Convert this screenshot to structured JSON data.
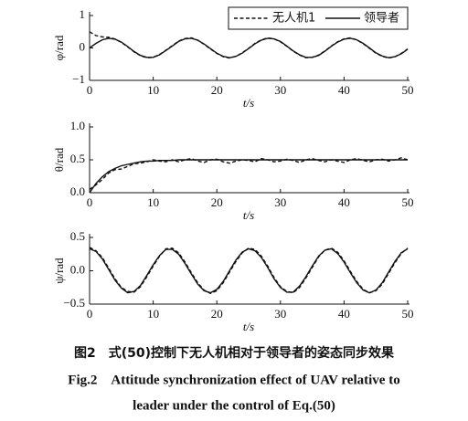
{
  "chart_data": [
    {
      "type": "line",
      "ylabel": "φ/rad",
      "xlabel": "t/s",
      "legend": "upper right",
      "x": [
        0,
        1,
        2,
        3,
        4,
        5,
        6,
        7,
        8,
        9,
        10,
        11,
        12,
        13,
        14,
        15,
        16,
        17,
        18,
        19,
        20,
        21,
        22,
        23,
        24,
        25,
        26,
        27,
        28,
        29,
        30,
        31,
        32,
        33,
        34,
        35,
        36,
        37,
        38,
        39,
        40,
        41,
        42,
        43,
        44,
        45,
        46,
        47,
        48,
        49,
        50
      ],
      "xlim": [
        0,
        50
      ],
      "xticks": [
        0,
        10,
        20,
        30,
        40,
        50
      ],
      "ylim": [
        -1,
        1
      ],
      "yticks": [
        {
          "value": -1,
          "label": "−1"
        },
        0,
        1
      ],
      "series": [
        {
          "name": "无人机1",
          "color": "#111111",
          "dash": true,
          "values": [
            0.5,
            0.38,
            0.34,
            0.33,
            0.28,
            0.17,
            0.03,
            -0.12,
            -0.24,
            -0.3,
            -0.29,
            -0.2,
            -0.07,
            0.07,
            0.21,
            0.29,
            0.31,
            0.24,
            0.11,
            -0.03,
            -0.17,
            -0.27,
            -0.31,
            -0.26,
            -0.15,
            -0.01,
            0.14,
            0.25,
            0.31,
            0.28,
            0.19,
            0.05,
            -0.1,
            -0.22,
            -0.3,
            -0.29,
            -0.22,
            -0.09,
            0.06,
            0.19,
            0.28,
            0.31,
            0.25,
            0.13,
            -0.01,
            -0.16,
            -0.26,
            -0.31,
            -0.27,
            -0.17,
            -0.03
          ]
        },
        {
          "name": "领导者",
          "color": "#111111",
          "dash": false,
          "values": [
            0,
            0.14,
            0.25,
            0.3,
            0.27,
            0.18,
            0.04,
            -0.11,
            -0.23,
            -0.29,
            -0.29,
            -0.21,
            -0.08,
            0.06,
            0.2,
            0.28,
            0.3,
            0.24,
            0.12,
            -0.02,
            -0.16,
            -0.26,
            -0.3,
            -0.26,
            -0.16,
            -0.02,
            0.13,
            0.24,
            0.3,
            0.28,
            0.2,
            0.06,
            -0.09,
            -0.21,
            -0.29,
            -0.29,
            -0.23,
            -0.1,
            0.05,
            0.18,
            0.27,
            0.3,
            0.25,
            0.14,
            0,
            -0.15,
            -0.25,
            -0.3,
            -0.27,
            -0.18,
            -0.04
          ]
        }
      ]
    },
    {
      "type": "line",
      "ylabel": "θ/rad",
      "xlabel": "t/s",
      "x": [
        0,
        1,
        2,
        3,
        4,
        5,
        6,
        7,
        8,
        9,
        10,
        11,
        12,
        13,
        14,
        15,
        16,
        17,
        18,
        19,
        20,
        21,
        22,
        23,
        24,
        25,
        26,
        27,
        28,
        29,
        30,
        31,
        32,
        33,
        34,
        35,
        36,
        37,
        38,
        39,
        40,
        41,
        42,
        43,
        44,
        45,
        46,
        47,
        48,
        49,
        50
      ],
      "xlim": [
        0,
        50
      ],
      "xticks": [
        0,
        10,
        20,
        30,
        40,
        50
      ],
      "ylim": [
        0,
        1
      ],
      "yticks": [
        {
          "value": 0,
          "label": "0.0"
        },
        0.5,
        {
          "value": 1,
          "label": "1.0"
        }
      ],
      "series": [
        {
          "color": "#111111",
          "dash": true,
          "values": [
            0.05,
            0.12,
            0.2,
            0.3,
            0.35,
            0.36,
            0.4,
            0.44,
            0.45,
            0.47,
            0.5,
            0.48,
            0.47,
            0.5,
            0.47,
            0.5,
            0.52,
            0.48,
            0.46,
            0.5,
            0.51,
            0.47,
            0.45,
            0.48,
            0.5,
            0.49,
            0.47,
            0.52,
            0.5,
            0.47,
            0.48,
            0.51,
            0.49,
            0.46,
            0.5,
            0.52,
            0.49,
            0.47,
            0.5,
            0.48,
            0.46,
            0.5,
            0.52,
            0.49,
            0.47,
            0.5,
            0.51,
            0.48,
            0.5,
            0.53,
            0.5
          ]
        },
        {
          "color": "#111111",
          "dash": false,
          "values": [
            0,
            0.14,
            0.24,
            0.32,
            0.37,
            0.41,
            0.43,
            0.45,
            0.47,
            0.48,
            0.48,
            0.49,
            0.49,
            0.49,
            0.5,
            0.5,
            0.5,
            0.5,
            0.5,
            0.5,
            0.5,
            0.5,
            0.5,
            0.5,
            0.5,
            0.5,
            0.5,
            0.5,
            0.5,
            0.5,
            0.5,
            0.5,
            0.5,
            0.5,
            0.5,
            0.5,
            0.5,
            0.5,
            0.5,
            0.5,
            0.5,
            0.5,
            0.5,
            0.5,
            0.5,
            0.5,
            0.5,
            0.5,
            0.5,
            0.5,
            0.5
          ]
        }
      ]
    },
    {
      "type": "line",
      "ylabel": "ψ/rad",
      "xlabel": "t/s",
      "x": [
        0,
        1,
        2,
        3,
        4,
        5,
        6,
        7,
        8,
        9,
        10,
        11,
        12,
        13,
        14,
        15,
        16,
        17,
        18,
        19,
        20,
        21,
        22,
        23,
        24,
        25,
        26,
        27,
        28,
        29,
        30,
        31,
        32,
        33,
        34,
        35,
        36,
        37,
        38,
        39,
        40,
        41,
        42,
        43,
        44,
        45,
        46,
        47,
        48,
        49,
        50
      ],
      "xlim": [
        0,
        50
      ],
      "xticks": [
        0,
        10,
        20,
        30,
        40,
        50
      ],
      "ylim": [
        -0.5,
        0.5
      ],
      "yticks": [
        {
          "value": -0.5,
          "label": "−0.5"
        },
        {
          "value": 0,
          "label": "0.0"
        },
        0.5
      ],
      "series": [
        {
          "color": "#111111",
          "dash": true,
          "values": [
            0.35,
            0.3,
            0.2,
            0.04,
            -0.12,
            -0.25,
            -0.31,
            -0.32,
            -0.24,
            -0.09,
            0.07,
            0.22,
            0.33,
            0.34,
            0.27,
            0.13,
            -0.03,
            -0.18,
            -0.29,
            -0.34,
            -0.3,
            -0.18,
            -0.02,
            0.14,
            0.27,
            0.34,
            0.32,
            0.22,
            0.07,
            -0.1,
            -0.24,
            -0.31,
            -0.33,
            -0.25,
            -0.11,
            0.05,
            0.21,
            0.31,
            0.34,
            0.28,
            0.15,
            -0.01,
            -0.16,
            -0.28,
            -0.33,
            -0.3,
            -0.2,
            -0.04,
            0.12,
            0.26,
            0.34
          ]
        },
        {
          "color": "#111111",
          "dash": false,
          "values": [
            0.33,
            0.29,
            0.18,
            0.02,
            -0.14,
            -0.26,
            -0.33,
            -0.31,
            -0.22,
            -0.07,
            0.09,
            0.23,
            0.32,
            0.32,
            0.25,
            0.11,
            -0.05,
            -0.2,
            -0.3,
            -0.33,
            -0.28,
            -0.16,
            0,
            0.16,
            0.28,
            0.33,
            0.3,
            0.2,
            0.05,
            -0.12,
            -0.25,
            -0.32,
            -0.32,
            -0.23,
            -0.09,
            0.07,
            0.22,
            0.31,
            0.33,
            0.26,
            0.13,
            -0.03,
            -0.18,
            -0.29,
            -0.33,
            -0.29,
            -0.18,
            -0.02,
            0.14,
            0.27,
            0.33
          ]
        }
      ]
    }
  ],
  "caption": {
    "cn": "图2　式(50)控制下无人机相对于领导者的姿态同步效果",
    "en_line1": "Fig.2　Attitude synchronization effect of UAV relative to",
    "en_line2": "leader under the control of Eq.(50)"
  }
}
